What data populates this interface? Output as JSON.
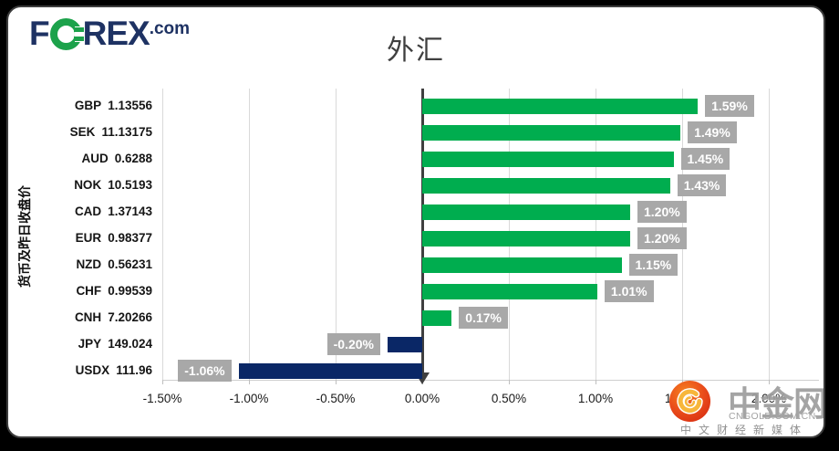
{
  "header": {
    "logo": {
      "f": "F",
      "rex": "REX",
      "dotcom": ".com"
    },
    "title": "外汇"
  },
  "chart_data": {
    "type": "bar",
    "orientation": "horizontal",
    "title": "外汇",
    "ylabel": "货币及昨日收盘价",
    "xlim": [
      -1.5,
      2.0
    ],
    "grid": true,
    "x_ticks": [
      {
        "value": -1.5,
        "label": "-1.50%"
      },
      {
        "value": -1.0,
        "label": "-1.00%"
      },
      {
        "value": -0.5,
        "label": "-0.50%"
      },
      {
        "value": 0.0,
        "label": "0.00%"
      },
      {
        "value": 0.5,
        "label": "0.50%"
      },
      {
        "value": 1.0,
        "label": "1.00%"
      },
      {
        "value": 1.5,
        "label": "1.50%"
      },
      {
        "value": 2.0,
        "label": "2.00%"
      }
    ],
    "rows": [
      {
        "code": "GBP",
        "close": "1.13556",
        "change_pct": 1.59,
        "label": "1.59%"
      },
      {
        "code": "SEK",
        "close": "11.13175",
        "change_pct": 1.49,
        "label": "1.49%"
      },
      {
        "code": "AUD",
        "close": "0.6288",
        "change_pct": 1.45,
        "label": "1.45%"
      },
      {
        "code": "NOK",
        "close": "10.5193",
        "change_pct": 1.43,
        "label": "1.43%"
      },
      {
        "code": "CAD",
        "close": "1.37143",
        "change_pct": 1.2,
        "label": "1.20%"
      },
      {
        "code": "EUR",
        "close": "0.98377",
        "change_pct": 1.2,
        "label": "1.20%"
      },
      {
        "code": "NZD",
        "close": "0.56231",
        "change_pct": 1.15,
        "label": "1.15%"
      },
      {
        "code": "CHF",
        "close": "0.99539",
        "change_pct": 1.01,
        "label": "1.01%"
      },
      {
        "code": "CNH",
        "close": "7.20266",
        "change_pct": 0.17,
        "label": "0.17%"
      },
      {
        "code": "JPY",
        "close": "149.024",
        "change_pct": -0.2,
        "label": "-0.20%"
      },
      {
        "code": "USDX",
        "close": "111.96",
        "change_pct": -1.06,
        "label": "-1.06%"
      }
    ],
    "colors": {
      "positive": "#00AD4F",
      "negative": "#0A2766",
      "label_box": "#A8A8A8",
      "label_text": "#FFFFFF",
      "gridline": "#D9D9D9",
      "zero_axis": "#3F3F3F",
      "title": "#3F3F3F"
    }
  },
  "watermark": {
    "name": "中金网",
    "domain": "CNGOLD.COM.CN",
    "tagline": "中文财经新媒体",
    "logo_colors": {
      "circle": "#E8461B",
      "swirl": "#F7B63B"
    }
  }
}
